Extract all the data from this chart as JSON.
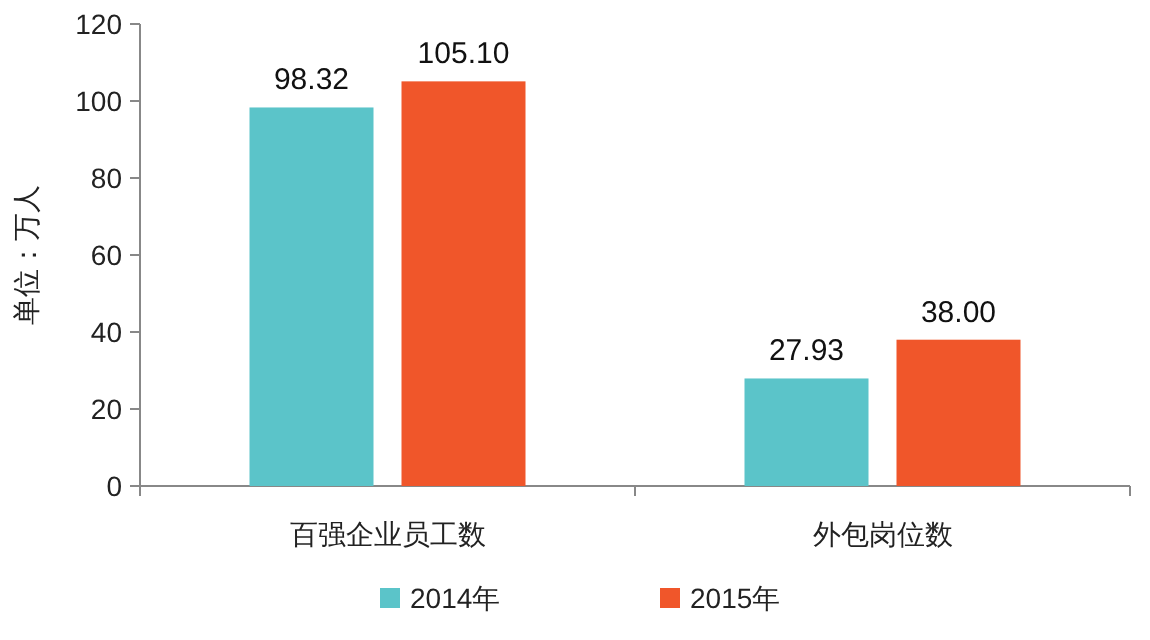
{
  "chart_data": {
    "type": "bar",
    "ylabel": "单位：万人",
    "categories": [
      "百强企业员工数",
      "外包岗位数"
    ],
    "series": [
      {
        "name": "2014年",
        "color": "#5bc4c9",
        "values": [
          98.32,
          27.93
        ],
        "value_labels": [
          "98.32",
          "27.93"
        ]
      },
      {
        "name": "2015年",
        "color": "#f0562a",
        "values": [
          105.1,
          38.0
        ],
        "value_labels": [
          "105.10",
          "38.00"
        ]
      }
    ],
    "ylim": [
      0,
      120
    ],
    "yticks": [
      0,
      20,
      40,
      60,
      80,
      100,
      120
    ],
    "grid": false,
    "legend": "bottom"
  }
}
